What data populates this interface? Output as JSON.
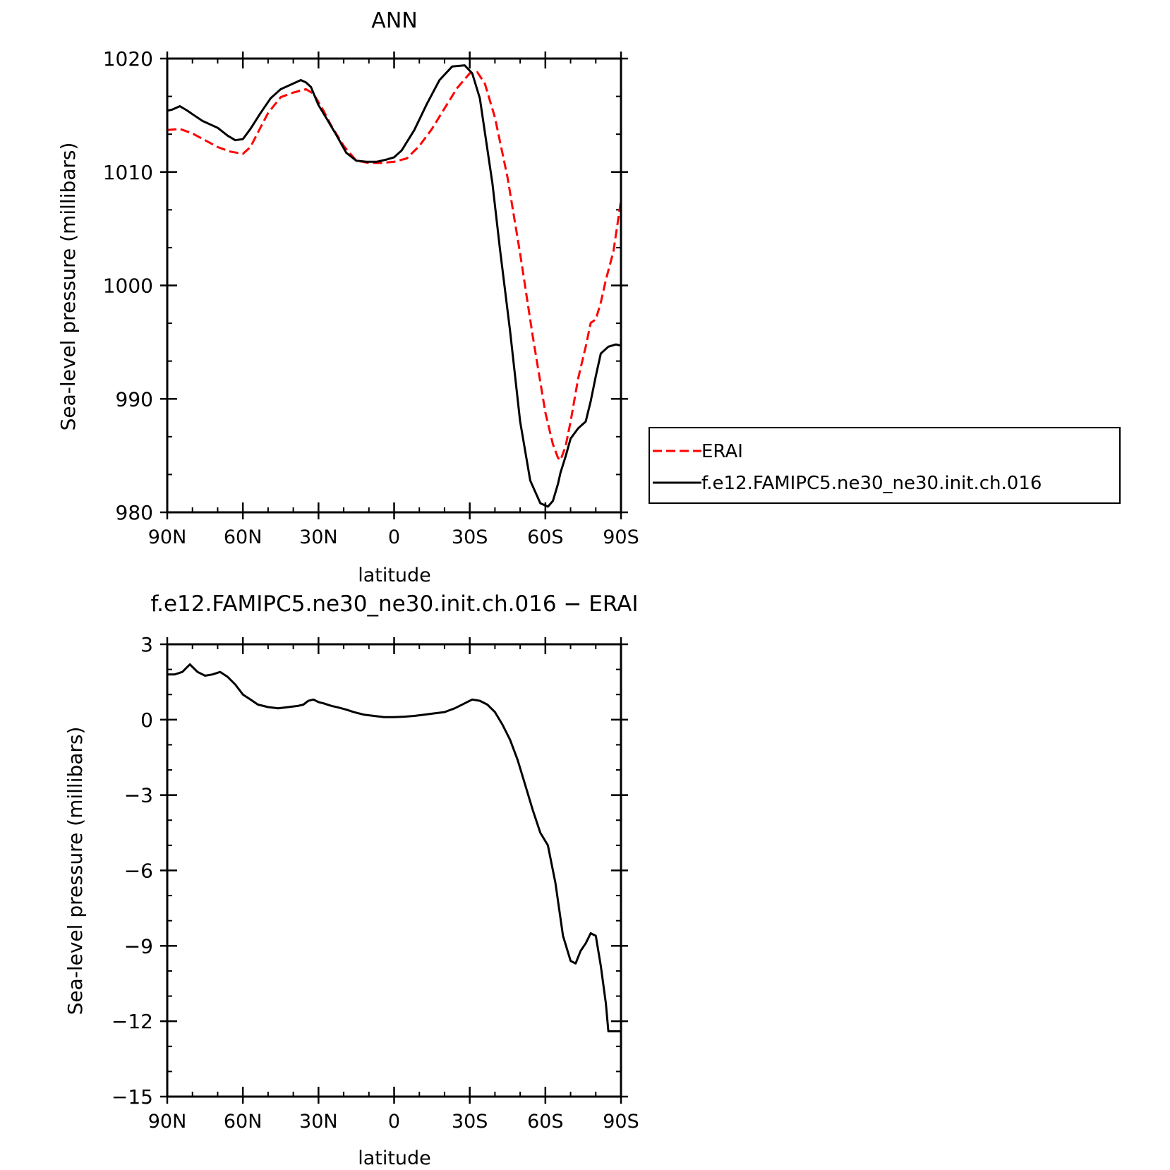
{
  "chart_data": [
    {
      "type": "line",
      "title": "ANN",
      "xlabel": "latitude",
      "ylabel": "Sea-level pressure (millibars)",
      "xlim": [
        90,
        -90
      ],
      "ylim": [
        980,
        1020
      ],
      "x_tick_values": [
        90,
        60,
        30,
        0,
        -30,
        -60,
        -90
      ],
      "x_tick_labels": [
        "90N",
        "60N",
        "30N",
        "0",
        "30S",
        "60S",
        "90S"
      ],
      "y_ticks": [
        980,
        990,
        1000,
        1010,
        1020
      ],
      "legend_position": "right",
      "series": [
        {
          "name": "ERAI",
          "color": "#ff0000",
          "dash": "dashed",
          "x": [
            90,
            85,
            80,
            75,
            70,
            65,
            60,
            57,
            54,
            50,
            45,
            40,
            35,
            32,
            28,
            25,
            20,
            15,
            10,
            5,
            0,
            -5,
            -10,
            -15,
            -20,
            -25,
            -30,
            -33,
            -36,
            -40,
            -45,
            -50,
            -55,
            -60,
            -63,
            -65,
            -66,
            -68,
            -70,
            -73,
            -76,
            -78,
            -80,
            -82,
            -84,
            -87,
            -90
          ],
          "values": [
            1013.7,
            1013.8,
            1013.4,
            1012.8,
            1012.2,
            1011.8,
            1011.6,
            1012.2,
            1013.5,
            1015.2,
            1016.6,
            1017.0,
            1017.3,
            1016.9,
            1015.4,
            1014.1,
            1012.3,
            1011.0,
            1010.8,
            1010.8,
            1010.9,
            1011.2,
            1012.3,
            1013.8,
            1015.6,
            1017.4,
            1018.7,
            1018.8,
            1017.8,
            1014.8,
            1009.5,
            1002.8,
            995.5,
            988.8,
            986.0,
            984.8,
            984.6,
            985.8,
            988.0,
            991.8,
            994.6,
            996.7,
            997.0,
            998.5,
            1000.5,
            1003.0,
            1007.5
          ]
        },
        {
          "name": "f.e12.FAMIPC5.ne30_ne30.init.ch.016",
          "color": "#000000",
          "dash": "solid",
          "x": [
            90,
            88,
            85,
            82,
            80,
            76,
            73,
            70,
            66,
            63,
            60,
            57,
            53,
            49,
            45,
            41,
            37,
            35,
            33,
            30,
            27,
            23,
            19,
            15,
            11,
            7,
            3,
            0,
            -3,
            -8,
            -13,
            -18,
            -23,
            -28,
            -31,
            -34,
            -36,
            -39,
            -42,
            -46,
            -50,
            -54,
            -58,
            -61,
            -63,
            -65,
            -66,
            -68,
            -70,
            -73,
            -76,
            -78,
            -80,
            -82,
            -85,
            -88,
            -90
          ],
          "values": [
            1015.4,
            1015.5,
            1015.8,
            1015.4,
            1015.1,
            1014.5,
            1014.2,
            1013.9,
            1013.2,
            1012.8,
            1012.9,
            1013.8,
            1015.2,
            1016.5,
            1017.3,
            1017.7,
            1018.1,
            1017.9,
            1017.5,
            1015.9,
            1014.8,
            1013.3,
            1011.7,
            1011.0,
            1010.9,
            1010.9,
            1011.1,
            1011.3,
            1011.9,
            1013.7,
            1016.0,
            1018.1,
            1019.3,
            1019.4,
            1018.7,
            1016.5,
            1013.5,
            1009.0,
            1003.2,
            996.0,
            988.0,
            982.8,
            980.8,
            980.5,
            981.0,
            982.5,
            983.5,
            984.9,
            986.5,
            987.4,
            988.0,
            989.8,
            992.0,
            994.0,
            994.6,
            994.8,
            994.7
          ]
        }
      ]
    },
    {
      "type": "line",
      "title": "f.e12.FAMIPC5.ne30_ne30.init.ch.016 − ERAI",
      "xlabel": "latitude",
      "ylabel": "Sea-level pressure (millibars)",
      "xlim": [
        90,
        -90
      ],
      "ylim": [
        -15,
        3
      ],
      "x_tick_values": [
        90,
        60,
        30,
        0,
        -30,
        -60,
        -90
      ],
      "x_tick_labels": [
        "90N",
        "60N",
        "30N",
        "0",
        "30S",
        "60S",
        "90S"
      ],
      "y_ticks": [
        -15,
        -12,
        -9,
        -6,
        -3,
        0,
        3
      ],
      "y_tick_labels": [
        "−15",
        "−12",
        "−9",
        "−6",
        "−3",
        "0",
        "3"
      ],
      "series": [
        {
          "color": "#000000",
          "dash": "solid",
          "x": [
            90,
            87,
            84,
            81,
            78,
            75,
            72,
            69,
            66,
            63,
            60,
            57,
            54,
            50,
            46,
            42,
            38,
            36,
            34,
            32,
            30,
            28,
            25,
            22,
            19,
            16,
            12,
            8,
            4,
            0,
            -4,
            -8,
            -12,
            -16,
            -20,
            -24,
            -28,
            -31,
            -34,
            -37,
            -40,
            -43,
            -46,
            -49,
            -52,
            -55,
            -58,
            -61,
            -64,
            -67,
            -70,
            -72,
            -74,
            -76,
            -78,
            -80,
            -82,
            -84,
            -85,
            -88,
            -90
          ],
          "values": [
            1.8,
            1.8,
            1.9,
            2.2,
            1.9,
            1.75,
            1.8,
            1.9,
            1.7,
            1.4,
            1.0,
            0.8,
            0.6,
            0.5,
            0.45,
            0.5,
            0.55,
            0.6,
            0.75,
            0.8,
            0.7,
            0.65,
            0.55,
            0.48,
            0.4,
            0.3,
            0.2,
            0.15,
            0.1,
            0.1,
            0.12,
            0.15,
            0.2,
            0.25,
            0.3,
            0.45,
            0.65,
            0.8,
            0.75,
            0.6,
            0.3,
            -0.2,
            -0.8,
            -1.6,
            -2.6,
            -3.6,
            -4.5,
            -5.0,
            -6.5,
            -8.6,
            -9.6,
            -9.7,
            -9.2,
            -8.9,
            -8.5,
            -8.6,
            -9.8,
            -11.3,
            -12.4,
            -12.4,
            -12.4
          ]
        }
      ]
    }
  ]
}
